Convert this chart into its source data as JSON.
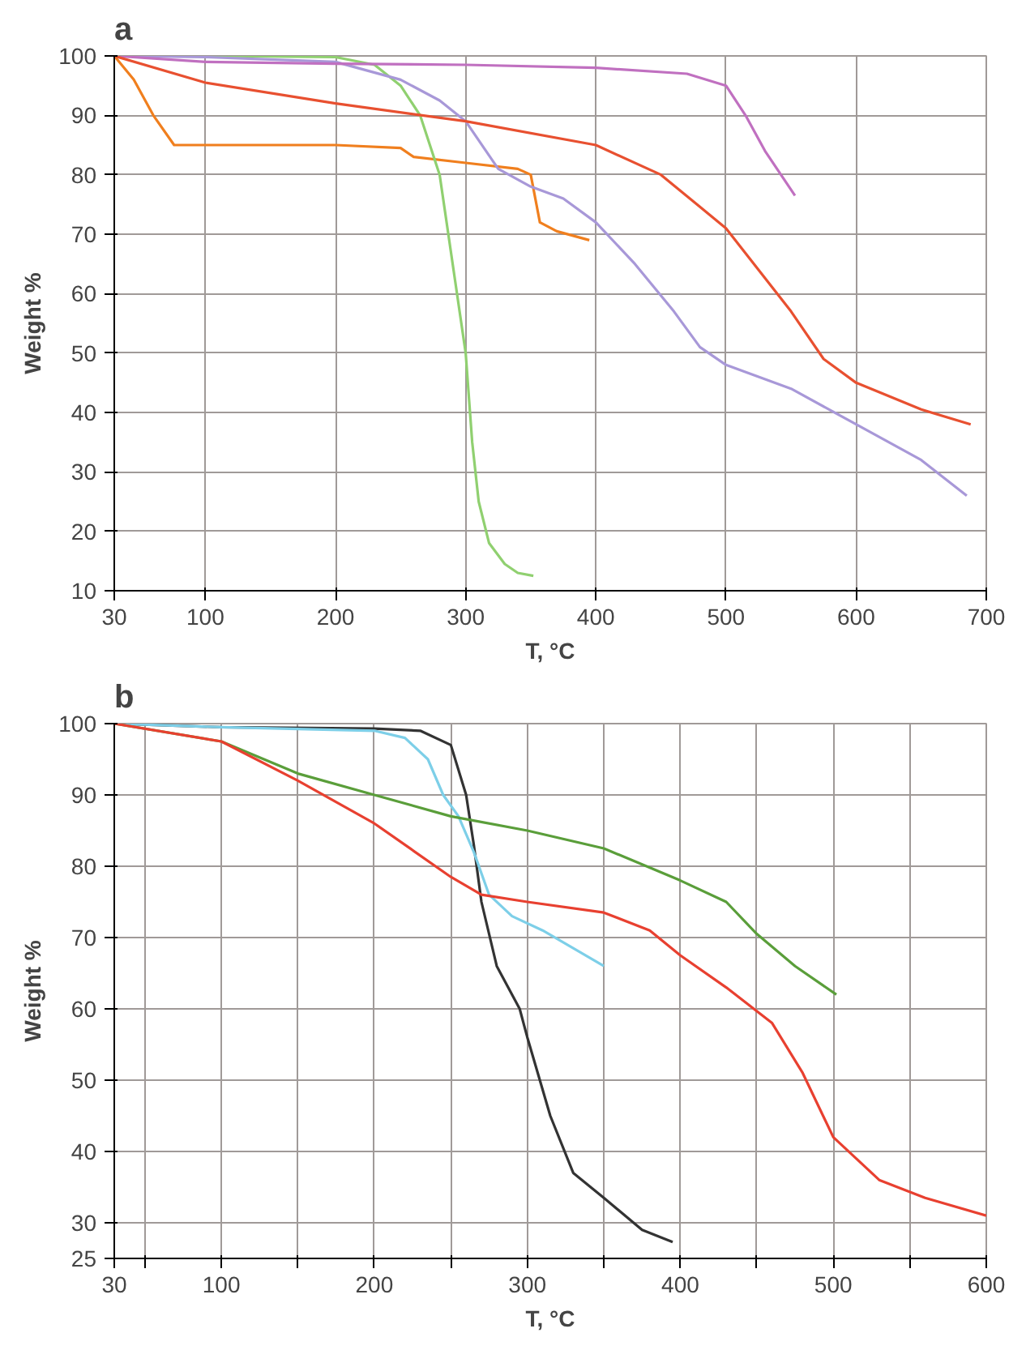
{
  "chart_data": [
    {
      "type": "line",
      "title": "a",
      "xlabel": "T, °C",
      "ylabel": "Weight %",
      "xlim": [
        30,
        700
      ],
      "ylim": [
        10,
        100
      ],
      "xticks": [
        30,
        100,
        200,
        300,
        400,
        500,
        600,
        700
      ],
      "yticks": [
        10,
        20,
        30,
        40,
        50,
        60,
        70,
        80,
        90,
        100
      ],
      "grid": true,
      "marker": "none",
      "line_style": "solid",
      "series": [
        {
          "color": "#f07f1e",
          "x": [
            30,
            45,
            60,
            76,
            100,
            150,
            200,
            250,
            260,
            300,
            340,
            350,
            357,
            370,
            395
          ],
          "values": [
            100,
            96,
            90,
            85,
            85,
            85,
            85,
            84.5,
            83,
            82,
            81,
            80,
            72,
            70.5,
            69
          ]
        },
        {
          "color": "#90d070",
          "x": [
            30,
            100,
            200,
            230,
            250,
            265,
            280,
            290,
            300,
            305,
            310,
            318,
            330,
            340,
            352
          ],
          "values": [
            100,
            100,
            99.8,
            98.5,
            95,
            90,
            80,
            65,
            50,
            35,
            25,
            18,
            14.5,
            13,
            12.5
          ]
        },
        {
          "color": "#a898d8",
          "x": [
            30,
            100,
            200,
            250,
            280,
            300,
            325,
            350,
            375,
            400,
            430,
            460,
            480,
            500,
            550,
            600,
            650,
            685
          ],
          "values": [
            100,
            99.8,
            99,
            96,
            92.5,
            89,
            81,
            78,
            76,
            72,
            65,
            57,
            51,
            48,
            44,
            38,
            32,
            26
          ]
        },
        {
          "color": "#c070c0",
          "x": [
            30,
            100,
            200,
            300,
            400,
            470,
            500,
            515,
            530,
            553
          ],
          "values": [
            100,
            99,
            98.7,
            98.5,
            98,
            97,
            95,
            90,
            84,
            76.5
          ]
        },
        {
          "color": "#e85030",
          "x": [
            30,
            100,
            200,
            300,
            400,
            450,
            500,
            550,
            575,
            600,
            650,
            688
          ],
          "values": [
            100,
            95.5,
            92,
            89,
            85,
            80,
            71,
            57,
            49,
            45,
            40.5,
            38
          ]
        }
      ]
    },
    {
      "type": "line",
      "title": "b",
      "xlabel": "T, °C",
      "ylabel": "Weight %",
      "xlim": [
        30,
        600
      ],
      "ylim": [
        25,
        100
      ],
      "xticks": [
        30,
        {
          "value": 50,
          "label": null
        },
        100,
        {
          "value": 150,
          "label": null
        },
        200,
        {
          "value": 250,
          "label": null
        },
        300,
        {
          "value": 350,
          "label": null
        },
        400,
        {
          "value": 450,
          "label": null
        },
        500,
        {
          "value": 550,
          "label": null
        },
        600
      ],
      "yticks": [
        25,
        30,
        40,
        50,
        60,
        70,
        80,
        90,
        100
      ],
      "grid": true,
      "marker": "none",
      "line_style": "solid",
      "series": [
        {
          "color": "#333333",
          "x": [
            30,
            100,
            200,
            230,
            250,
            260,
            265,
            270,
            280,
            295,
            300,
            315,
            330,
            350,
            375,
            395
          ],
          "values": [
            100,
            99.5,
            99.3,
            99,
            97,
            90,
            83,
            75,
            66,
            60,
            56,
            45,
            37,
            33.5,
            29,
            27.3
          ]
        },
        {
          "color": "#7dcfe8",
          "x": [
            30,
            100,
            200,
            220,
            235,
            245,
            255,
            265,
            275,
            290,
            310,
            330,
            350
          ],
          "values": [
            100,
            99.5,
            99,
            98,
            95,
            90,
            87,
            82,
            76,
            73,
            71,
            68.5,
            66
          ]
        },
        {
          "color": "#5a9e3a",
          "x": [
            30,
            100,
            150,
            200,
            250,
            300,
            350,
            400,
            430,
            450,
            475,
            502
          ],
          "values": [
            100,
            97.5,
            93,
            90,
            87,
            85,
            82.5,
            78,
            75,
            70.5,
            66,
            62
          ]
        },
        {
          "color": "#e84030",
          "x": [
            30,
            100,
            150,
            200,
            250,
            270,
            300,
            350,
            380,
            400,
            430,
            460,
            480,
            500,
            530,
            560,
            600
          ],
          "values": [
            100,
            97.5,
            92,
            86,
            78.5,
            76,
            75,
            73.5,
            71,
            67.5,
            63,
            58,
            51,
            42,
            36,
            33.5,
            31
          ]
        }
      ]
    }
  ]
}
